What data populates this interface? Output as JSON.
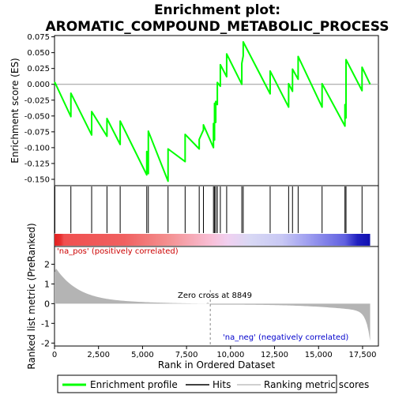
{
  "chart_data": {
    "type": "line",
    "title_line1": "Enrichment plot:",
    "title_line2": "AROMATIC_COMPOUND_METABOLIC_PROCESS",
    "top_panel": {
      "ylabel": "Enrichment score (ES)",
      "ylim": [
        -0.16,
        0.077
      ],
      "yticks": [
        "0.075",
        "0.050",
        "0.025",
        "0.000",
        "-0.025",
        "-0.050",
        "-0.075",
        "-0.100",
        "-0.125",
        "-0.150"
      ],
      "ytick_values": [
        0.075,
        0.05,
        0.025,
        0.0,
        -0.025,
        -0.05,
        -0.075,
        -0.1,
        -0.125,
        -0.15
      ]
    },
    "bottom_panel": {
      "ylabel": "Ranked list metric (PreRanked)",
      "ylim": [
        -2.15,
        2.9
      ],
      "yticks": [
        "2",
        "1",
        "0",
        "-1",
        "-2"
      ],
      "ytick_values": [
        2,
        1,
        0,
        -1,
        -2
      ]
    },
    "xlabel": "Rank in Ordered Dataset",
    "xlim": [
      0,
      18400
    ],
    "xticks": [
      "0",
      "2,500",
      "5,000",
      "7,500",
      "10,000",
      "12,500",
      "15,000",
      "17,500"
    ],
    "xtick_values": [
      0,
      2500,
      5000,
      7500,
      10000,
      12500,
      15000,
      17500
    ],
    "n_genes": 17930,
    "hits": [
      20,
      930,
      2110,
      2980,
      3730,
      5240,
      5330,
      6450,
      7420,
      8220,
      8460,
      9030,
      9090,
      9160,
      9250,
      9420,
      9780,
      10640,
      10720,
      12250,
      13300,
      13520,
      13840,
      15200,
      16500,
      16560,
      17470
    ],
    "es_peaks": [
      0.003,
      -0.014,
      -0.043,
      -0.054,
      -0.058,
      -0.106,
      -0.074,
      -0.102,
      -0.079,
      -0.087,
      -0.064,
      -0.062,
      -0.03,
      -0.027,
      0.003,
      0.031,
      0.048,
      0.033,
      0.067,
      0.021,
      0.001,
      0.024,
      0.044,
      0.001,
      -0.032,
      0.039,
      0.027
    ],
    "es_end": 0.0,
    "metric_start": 1.6,
    "metric_end": -1.9,
    "zero_cross_label": "Zero cross at 8849",
    "zero_cross": 8849,
    "pos_label": "'na_pos' (positively correlated)",
    "neg_label": "'na_neg' (negatively correlated)",
    "legend": {
      "items": [
        {
          "label": "Enrichment profile",
          "color": "#00ff00"
        },
        {
          "label": "Hits",
          "color": "#000000"
        },
        {
          "label": "Ranking metric scores",
          "color": "#c0c0c0"
        }
      ]
    },
    "colors": {
      "profile": "#00ff00",
      "pos_text": "#cc0000",
      "neg_text": "#0000cc",
      "metric_fill": "#b4b4b4"
    }
  }
}
